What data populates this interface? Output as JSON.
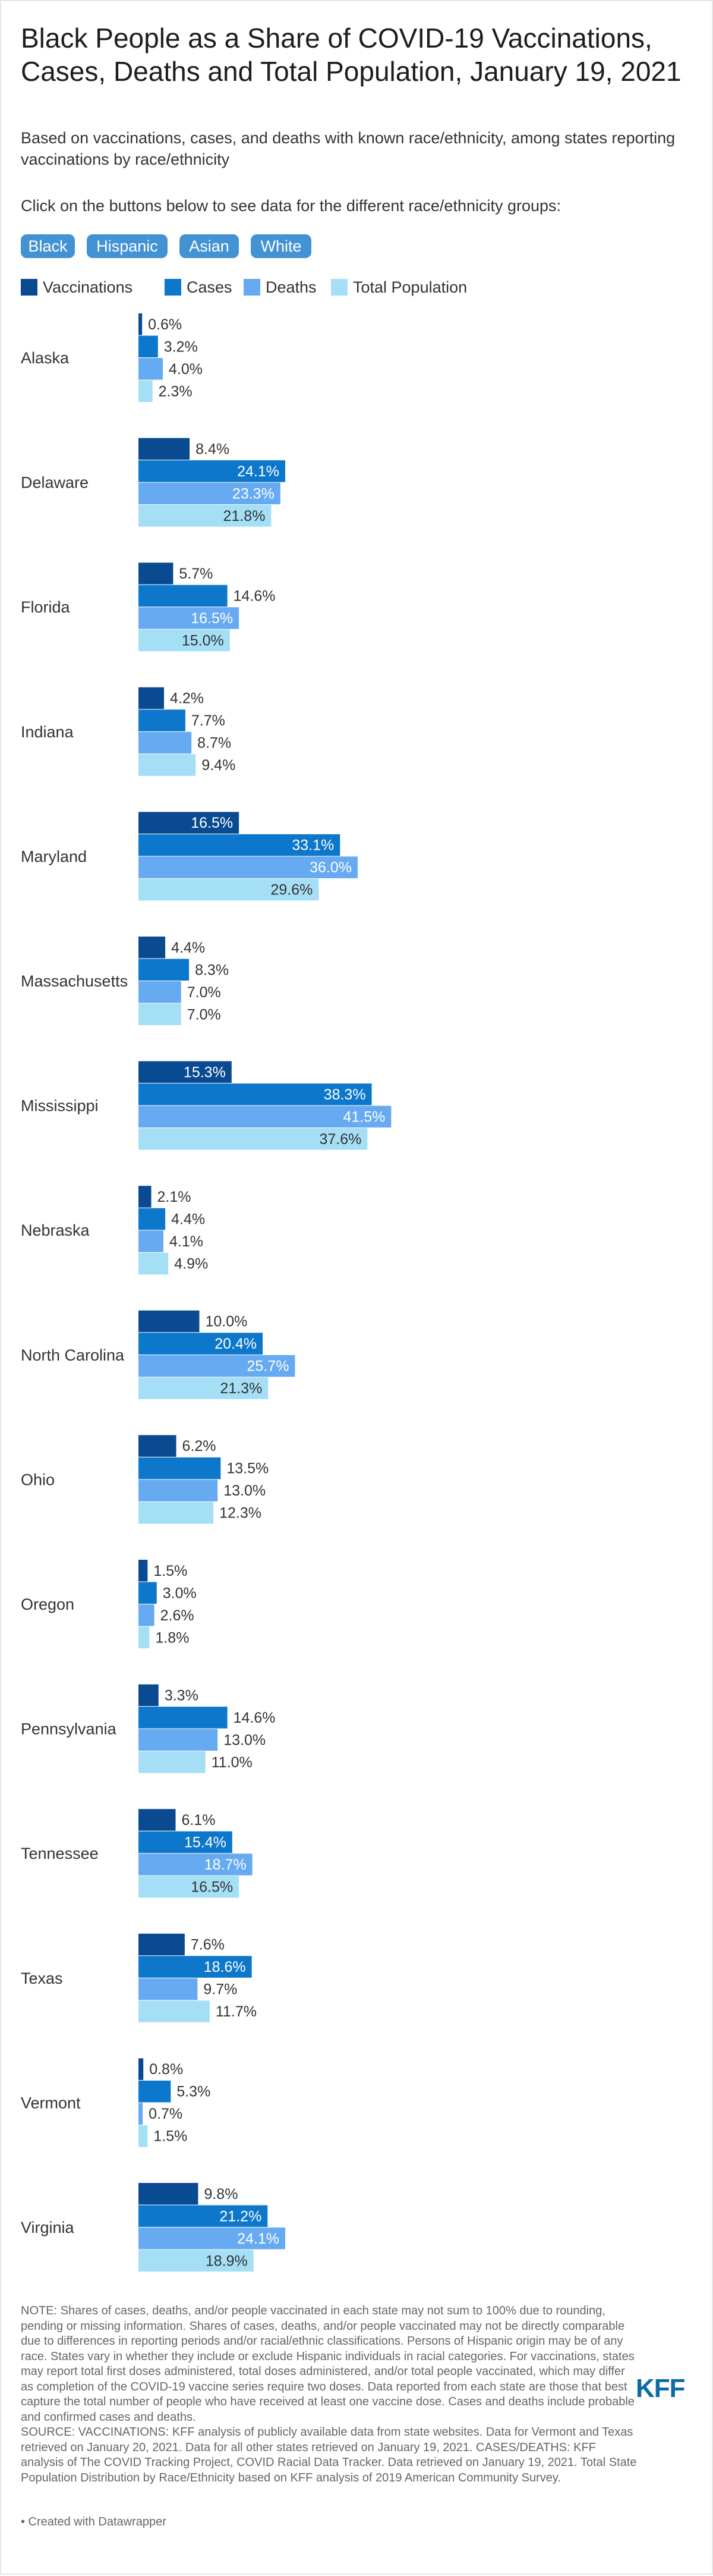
{
  "header": {
    "title": "Black People as a Share of COVID-19 Vaccinations, Cases, Deaths and Total Population, January 19, 2021",
    "subtitle": "Based on vaccinations, cases, and deaths with known race/ethnicity, among states reporting vaccinations by race/ethnicity",
    "instructions": "Click on the buttons below to see data for the different race/ethnicity groups:"
  },
  "buttons": [
    {
      "label": "Black"
    },
    {
      "label": "Hispanic"
    },
    {
      "label": "Asian"
    },
    {
      "label": "White"
    }
  ],
  "colors": {
    "button": "#4392d4",
    "vaccinations": "#0a4a91",
    "cases": "#0c77cb",
    "deaths": "#66aaf2",
    "population": "#a5dff6"
  },
  "chart_data": {
    "type": "bar",
    "orientation": "horizontal",
    "grouped": true,
    "unit": "%",
    "legend_position": "top-left",
    "grid": false,
    "series": [
      {
        "name": "Vaccinations",
        "color": "#0a4a91",
        "values": [
          0.6,
          8.4,
          5.7,
          4.2,
          16.5,
          4.4,
          15.3,
          2.1,
          10.0,
          6.2,
          1.5,
          3.3,
          6.1,
          7.6,
          0.8,
          9.8
        ]
      },
      {
        "name": "Cases",
        "color": "#0c77cb",
        "values": [
          3.2,
          24.1,
          14.6,
          7.7,
          33.1,
          8.3,
          38.3,
          4.4,
          20.4,
          13.5,
          3.0,
          14.6,
          15.4,
          18.6,
          5.3,
          21.2
        ]
      },
      {
        "name": "Deaths",
        "color": "#66aaf2",
        "values": [
          4.0,
          23.3,
          16.5,
          8.7,
          36.0,
          7.0,
          41.5,
          4.1,
          25.7,
          13.0,
          2.6,
          13.0,
          18.7,
          9.7,
          0.7,
          24.1
        ]
      },
      {
        "name": "Total Population",
        "color": "#a5dff6",
        "values": [
          2.3,
          21.8,
          15.0,
          9.4,
          29.6,
          7.0,
          37.6,
          4.9,
          21.3,
          12.3,
          1.8,
          11.0,
          16.5,
          11.7,
          1.5,
          18.9
        ]
      }
    ],
    "categories": [
      "Alaska",
      "Delaware",
      "Florida",
      "Indiana",
      "Maryland",
      "Massachusetts",
      "Mississippi",
      "Nebraska",
      "North Carolina",
      "Ohio",
      "Oregon",
      "Pennsylvania",
      "Tennessee",
      "Texas",
      "Vermont",
      "Virginia"
    ],
    "xlim": [
      0,
      100
    ]
  },
  "notes": {
    "note": "NOTE: Shares of cases, deaths, and/or people vaccinated in each state may not sum to 100% due to rounding, pending or missing information. Shares of cases, deaths, and/or people vaccinated may not be directly comparable due to differences in reporting periods and/or racial/ethnic classifications. Persons of Hispanic origin may be of any race. States vary in whether they include or exclude Hispanic individuals in racial categories. For vaccinations, states may report total first doses administered, total doses administered, and/or total people vaccinated, which may differ as completion of the COVID-19 vaccine series require two doses. Data reported from each state are those that best capture the total number of people who have received at least one vaccine dose. Cases and deaths include probable and confirmed cases and deaths.",
    "source": "SOURCE: VACCINATIONS: KFF analysis of publicly available data from state websites. Data for Vermont and Texas retrieved on January 20, 2021. Data for all other states retrieved on January 19, 2021. CASES/DEATHS: KFF analysis of The COVID Tracking Project, COVID Racial Data Tracker. Data retrieved on January 19, 2021. Total State Population Distribution by Race/Ethnicity based on KFF analysis of 2019 American Community Survey.",
    "credit": "• Created with Datawrapper",
    "logo": "KFF"
  }
}
